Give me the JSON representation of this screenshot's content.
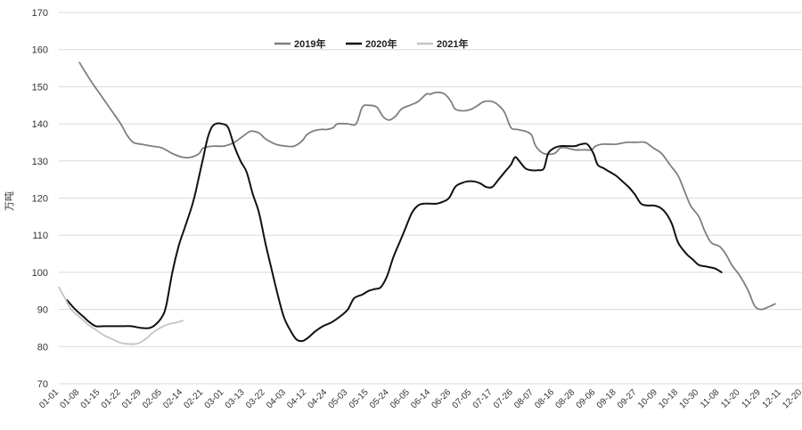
{
  "chart_data": {
    "type": "line",
    "ylabel": "万吨",
    "ylim": [
      70,
      170
    ],
    "yticks": [
      70,
      80,
      90,
      100,
      110,
      120,
      130,
      140,
      150,
      160,
      170
    ],
    "grid": true,
    "legend_position": "top-center",
    "x_labels": [
      "01-01",
      "01-08",
      "01-15",
      "01-22",
      "01-29",
      "02-05",
      "02-14",
      "02-21",
      "03-01",
      "03-13",
      "03-22",
      "04-03",
      "04-12",
      "04-24",
      "05-03",
      "05-15",
      "05-24",
      "06-05",
      "06-14",
      "06-26",
      "07-05",
      "07-17",
      "07-26",
      "08-07",
      "08-16",
      "08-28",
      "09-06",
      "09-18",
      "09-27",
      "10-09",
      "10-18",
      "10-30",
      "11-08",
      "11-20",
      "11-29",
      "12-11",
      "12-20"
    ],
    "series": [
      {
        "name": "2019年",
        "color": "#7f7f7f",
        "points": [
          [
            1,
            156.5
          ],
          [
            1.5,
            152
          ],
          [
            2,
            148
          ],
          [
            2.5,
            144
          ],
          [
            3,
            140
          ],
          [
            3.3,
            137
          ],
          [
            3.6,
            135
          ],
          [
            4,
            134.5
          ],
          [
            4.5,
            134
          ],
          [
            5,
            133.5
          ],
          [
            5.5,
            132
          ],
          [
            6,
            131
          ],
          [
            6.4,
            131
          ],
          [
            6.8,
            132
          ],
          [
            7,
            133.5
          ],
          [
            7.5,
            134
          ],
          [
            8,
            134
          ],
          [
            8.5,
            135
          ],
          [
            9,
            137
          ],
          [
            9.3,
            138
          ],
          [
            9.7,
            137.5
          ],
          [
            10,
            136
          ],
          [
            10.5,
            134.5
          ],
          [
            11,
            134
          ],
          [
            11.4,
            134
          ],
          [
            11.8,
            135.5
          ],
          [
            12,
            137
          ],
          [
            12.3,
            138
          ],
          [
            12.7,
            138.5
          ],
          [
            13,
            138.5
          ],
          [
            13.3,
            139
          ],
          [
            13.5,
            140
          ],
          [
            14,
            140
          ],
          [
            14.4,
            140
          ],
          [
            14.7,
            144.5
          ],
          [
            15,
            145
          ],
          [
            15.4,
            144.5
          ],
          [
            15.7,
            142
          ],
          [
            16,
            141
          ],
          [
            16.3,
            142
          ],
          [
            16.6,
            144
          ],
          [
            17,
            145
          ],
          [
            17.4,
            146
          ],
          [
            17.8,
            148
          ],
          [
            18,
            148
          ],
          [
            18.3,
            148.5
          ],
          [
            18.7,
            148
          ],
          [
            19,
            146
          ],
          [
            19.2,
            144
          ],
          [
            19.6,
            143.5
          ],
          [
            20,
            144
          ],
          [
            20.3,
            145
          ],
          [
            20.6,
            146
          ],
          [
            21,
            146
          ],
          [
            21.3,
            145
          ],
          [
            21.6,
            143
          ],
          [
            21.9,
            139
          ],
          [
            22.2,
            138.5
          ],
          [
            22.6,
            138
          ],
          [
            22.9,
            137
          ],
          [
            23.1,
            134
          ],
          [
            23.5,
            132
          ],
          [
            24,
            132
          ],
          [
            24.3,
            133.5
          ],
          [
            24.6,
            133.5
          ],
          [
            25,
            133
          ],
          [
            25.5,
            133
          ],
          [
            25.8,
            133
          ],
          [
            26,
            134
          ],
          [
            26.3,
            134.5
          ],
          [
            26.7,
            134.5
          ],
          [
            27,
            134.5
          ],
          [
            27.5,
            135
          ],
          [
            28,
            135
          ],
          [
            28.4,
            135
          ],
          [
            28.8,
            133.5
          ],
          [
            29.2,
            132
          ],
          [
            29.6,
            129
          ],
          [
            30,
            126
          ],
          [
            30.3,
            122
          ],
          [
            30.6,
            118
          ],
          [
            31,
            115
          ],
          [
            31.3,
            111
          ],
          [
            31.6,
            108
          ],
          [
            32,
            107
          ],
          [
            32.3,
            105
          ],
          [
            32.6,
            102
          ],
          [
            33,
            99
          ],
          [
            33.4,
            95
          ],
          [
            33.7,
            91
          ],
          [
            34,
            90
          ],
          [
            34.3,
            90.5
          ],
          [
            34.7,
            91.5
          ]
        ]
      },
      {
        "name": "2020年",
        "color": "#111111",
        "points": [
          [
            0.4,
            92.5
          ],
          [
            0.8,
            90
          ],
          [
            1.2,
            88
          ],
          [
            1.5,
            86.5
          ],
          [
            1.8,
            85.5
          ],
          [
            2.2,
            85.5
          ],
          [
            2.6,
            85.5
          ],
          [
            3,
            85.5
          ],
          [
            3.5,
            85.5
          ],
          [
            4,
            85
          ],
          [
            4.4,
            85
          ],
          [
            4.7,
            86
          ],
          [
            5,
            88
          ],
          [
            5.2,
            91
          ],
          [
            5.5,
            100
          ],
          [
            5.8,
            107
          ],
          [
            6.1,
            112
          ],
          [
            6.4,
            117
          ],
          [
            6.6,
            121
          ],
          [
            6.8,
            126
          ],
          [
            7,
            131
          ],
          [
            7.2,
            136
          ],
          [
            7.4,
            139
          ],
          [
            7.6,
            140
          ],
          [
            7.9,
            140
          ],
          [
            8.2,
            139
          ],
          [
            8.5,
            134
          ],
          [
            8.8,
            130
          ],
          [
            9.1,
            127
          ],
          [
            9.4,
            121
          ],
          [
            9.7,
            116
          ],
          [
            10,
            108
          ],
          [
            10.3,
            101
          ],
          [
            10.6,
            94
          ],
          [
            10.9,
            88
          ],
          [
            11.2,
            84.5
          ],
          [
            11.5,
            82
          ],
          [
            11.8,
            81.5
          ],
          [
            12.1,
            82.5
          ],
          [
            12.4,
            84
          ],
          [
            12.8,
            85.5
          ],
          [
            13.2,
            86.5
          ],
          [
            13.6,
            88
          ],
          [
            14,
            90
          ],
          [
            14.3,
            93
          ],
          [
            14.7,
            94
          ],
          [
            15,
            95
          ],
          [
            15.3,
            95.5
          ],
          [
            15.6,
            96
          ],
          [
            15.9,
            99
          ],
          [
            16.2,
            104
          ],
          [
            16.5,
            108
          ],
          [
            16.8,
            112
          ],
          [
            17.1,
            116
          ],
          [
            17.4,
            118
          ],
          [
            17.7,
            118.5
          ],
          [
            18,
            118.5
          ],
          [
            18.3,
            118.5
          ],
          [
            18.6,
            119
          ],
          [
            18.9,
            120
          ],
          [
            19.2,
            123
          ],
          [
            19.5,
            124
          ],
          [
            19.8,
            124.5
          ],
          [
            20.1,
            124.5
          ],
          [
            20.4,
            124
          ],
          [
            20.7,
            123
          ],
          [
            21,
            123
          ],
          [
            21.3,
            125
          ],
          [
            21.6,
            127
          ],
          [
            21.9,
            129
          ],
          [
            22.1,
            131
          ],
          [
            22.3,
            130
          ],
          [
            22.6,
            128
          ],
          [
            22.9,
            127.5
          ],
          [
            23.2,
            127.5
          ],
          [
            23.5,
            128
          ],
          [
            23.7,
            132
          ],
          [
            24,
            133.5
          ],
          [
            24.3,
            134
          ],
          [
            24.6,
            134
          ],
          [
            25,
            134
          ],
          [
            25.3,
            134.5
          ],
          [
            25.6,
            134.5
          ],
          [
            25.9,
            132
          ],
          [
            26.1,
            129
          ],
          [
            26.4,
            128
          ],
          [
            26.7,
            127
          ],
          [
            27,
            126
          ],
          [
            27.3,
            124.5
          ],
          [
            27.6,
            123
          ],
          [
            27.9,
            121
          ],
          [
            28.2,
            118.5
          ],
          [
            28.5,
            118
          ],
          [
            28.8,
            118
          ],
          [
            29.1,
            117.5
          ],
          [
            29.4,
            116
          ],
          [
            29.7,
            113
          ],
          [
            30,
            108
          ],
          [
            30.4,
            105
          ],
          [
            30.7,
            103.5
          ],
          [
            31,
            102
          ],
          [
            31.4,
            101.5
          ],
          [
            31.8,
            101
          ],
          [
            32.1,
            100
          ]
        ]
      },
      {
        "name": "2021年",
        "color": "#c4c4c4",
        "points": [
          [
            0,
            96
          ],
          [
            0.3,
            93
          ],
          [
            0.6,
            90
          ],
          [
            1,
            88
          ],
          [
            1.4,
            86
          ],
          [
            1.8,
            84.5
          ],
          [
            2.2,
            83
          ],
          [
            2.6,
            82
          ],
          [
            3,
            81
          ],
          [
            3.4,
            80.7
          ],
          [
            3.8,
            80.8
          ],
          [
            4.2,
            82
          ],
          [
            4.5,
            83.5
          ],
          [
            4.9,
            85
          ],
          [
            5.3,
            86
          ],
          [
            5.7,
            86.5
          ],
          [
            6,
            87
          ]
        ]
      }
    ]
  }
}
